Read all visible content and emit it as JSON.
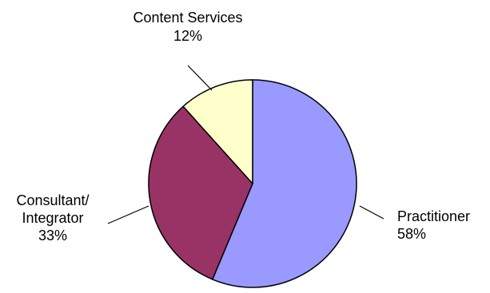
{
  "chart_data": {
    "type": "pie",
    "title": "",
    "start_angle_deg": 0,
    "direction": "clockwise",
    "slices": [
      {
        "label_lines": [
          "Practitioner"
        ],
        "value_label": "58%",
        "value": 58,
        "color": "#9999ff"
      },
      {
        "label_lines": [
          "Consultant/",
          "Integrator"
        ],
        "value_label": "33%",
        "value": 33,
        "color": "#993366"
      },
      {
        "label_lines": [
          "Content Services"
        ],
        "value_label": "12%",
        "value": 12,
        "color": "#ffffcc"
      }
    ],
    "legend": "none",
    "outline_color": "#000000",
    "background": "#ffffff"
  }
}
